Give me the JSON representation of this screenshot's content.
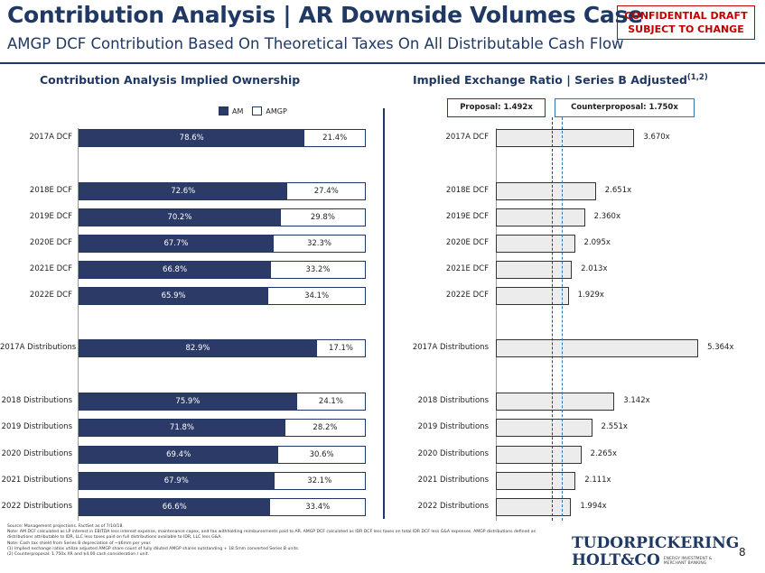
{
  "header": {
    "title": "Contribution Analysis | AR Downside Volumes Case",
    "subtitle": "AMGP DCF Contribution Based On Theoretical Taxes On All Distributable Cash Flow",
    "confidential_line1": "CONFIDENTIAL DRAFT",
    "confidential_line2": "SUBJECT TO CHANGE"
  },
  "left_section": {
    "title": "Contribution Analysis Implied Ownership",
    "legend_am": "AM",
    "legend_amgp": "AMGP"
  },
  "right_section": {
    "title": "Implied Exchange Ratio | Series B Adjusted",
    "title_sup": "(1,2)",
    "proposal_label": "Proposal: 1.492x",
    "counterproposal_label": "Counterproposal: 1.750x"
  },
  "chart_data": [
    {
      "type": "bar",
      "stacked": true,
      "orientation": "horizontal",
      "title": "Contribution Analysis Implied Ownership",
      "categories": [
        "2017A DCF",
        "2018E DCF",
        "2019E DCF",
        "2020E DCF",
        "2021E DCF",
        "2022E DCF",
        "2017A Distributions",
        "2018 Distributions",
        "2019 Distributions",
        "2020 Distributions",
        "2021 Distributions",
        "2022 Distributions"
      ],
      "series": [
        {
          "name": "AM",
          "color": "#2b3a67",
          "values": [
            78.6,
            72.6,
            70.2,
            67.7,
            66.8,
            65.9,
            82.9,
            75.9,
            71.8,
            69.4,
            67.9,
            66.6
          ],
          "labels": [
            "78.6%",
            "72.6%",
            "70.2%",
            "67.7%",
            "66.8%",
            "65.9%",
            "82.9%",
            "75.9%",
            "71.8%",
            "69.4%",
            "67.9%",
            "66.6%"
          ]
        },
        {
          "name": "AMGP",
          "color": "#ffffff",
          "values": [
            21.4,
            27.4,
            29.8,
            32.3,
            33.2,
            34.1,
            17.1,
            24.1,
            28.2,
            30.6,
            32.1,
            33.4
          ],
          "labels": [
            "21.4%",
            "27.4%",
            "29.8%",
            "32.3%",
            "33.2%",
            "34.1%",
            "17.1%",
            "24.1%",
            "28.2%",
            "30.6%",
            "32.1%",
            "33.4%"
          ]
        }
      ],
      "xlim": [
        0,
        100
      ],
      "legend": "top"
    },
    {
      "type": "bar",
      "orientation": "horizontal",
      "title": "Implied Exchange Ratio | Series B Adjusted",
      "categories": [
        "2017A DCF",
        "2018E DCF",
        "2019E DCF",
        "2020E DCF",
        "2021E DCF",
        "2022E DCF",
        "2017A Distributions",
        "2018 Distributions",
        "2019 Distributions",
        "2020 Distributions",
        "2021 Distributions",
        "2022 Distributions"
      ],
      "values": [
        3.67,
        2.651,
        2.36,
        2.095,
        2.013,
        1.929,
        5.364,
        3.142,
        2.551,
        2.265,
        2.111,
        1.994
      ],
      "labels": [
        "3.670x",
        "2.651x",
        "2.360x",
        "2.095x",
        "2.013x",
        "1.929x",
        "5.364x",
        "3.142x",
        "2.551x",
        "2.265x",
        "2.111x",
        "1.994x"
      ],
      "reference_lines": [
        {
          "name": "Proposal",
          "value": 1.492,
          "color": "#c00000",
          "style": "dashed"
        },
        {
          "name": "Counterproposal",
          "value": 1.75,
          "color": "#2e75b6",
          "style": "dashed"
        }
      ],
      "xlim": [
        0,
        5.6
      ]
    }
  ],
  "footnotes": [
    "Source: Management projections. FactSet as of 7/10/18.",
    "Note: AM DCF calculated as LP interest in EBITDA less interest expense, maintenance capex, and tax withholding reimbursements paid to AR. AMGP DCF calculated as IDR DCF less taxes on total IDR DCF less G&A expenses. AMGP distributions defined as distributions attributable to IDR, LLC less taxes paid on full distributions available to IDR, LLC less G&A.",
    "Note: Cash tax shield from Series B depreciation of ~$6mm per year.",
    "(1)      Implied exchange ratios utilize adjusted AMGP share count of fully diluted AMGP shares outstanding + 18.5mm converted Series B units.",
    "(2)      Counterproposal: 1.750x XR and $4.00 cash consideration / unit."
  ],
  "footer": {
    "logo_line1": "TUDORPICKERING",
    "logo_line2": "HOLT&CO",
    "logo_sub1": "ENERGY INVESTMENT &",
    "logo_sub2": "MERCHANT BANKING",
    "page_number": "8"
  }
}
